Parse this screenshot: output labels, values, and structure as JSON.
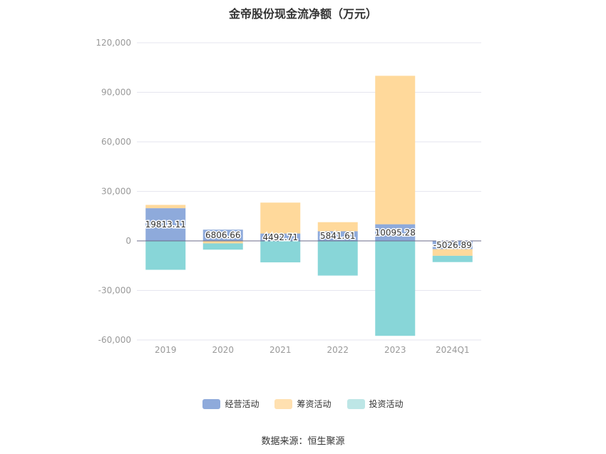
{
  "chart_data": {
    "type": "bar",
    "stacked": true,
    "title": "金帝股份现金流净额（万元）",
    "categories": [
      "2019",
      "2020",
      "2021",
      "2022",
      "2023",
      "2024Q1"
    ],
    "series": [
      {
        "name": "经营活动",
        "color": "#8eaadb",
        "values": [
          19813.11,
          6806.66,
          4492.71,
          5841.61,
          10095.28,
          -5026.89
        ]
      },
      {
        "name": "筹资活动",
        "color": "#ffe0b0",
        "values": [
          2000,
          -1500,
          18700,
          5500,
          89900,
          -4000
        ]
      },
      {
        "name": "投资活动",
        "color": "#bde6e6",
        "values": [
          -17500,
          -3800,
          -13000,
          -21000,
          -57500,
          -3800
        ]
      }
    ],
    "bar_colors": [
      "#8eaadb",
      "#ffd99b",
      "#88d6d8"
    ],
    "data_labels": [
      "19813.11",
      "6806.66",
      "4492.71",
      "5841.61",
      "10095.28",
      "-5026.89"
    ],
    "y_ticks": [
      "120,000",
      "90,000",
      "60,000",
      "30,000",
      "0",
      "-30,000",
      "-60,000"
    ],
    "ylim": [
      -60000,
      120000
    ],
    "legend_position": "bottom",
    "grid": true
  },
  "source": "数据来源：恒生聚源"
}
